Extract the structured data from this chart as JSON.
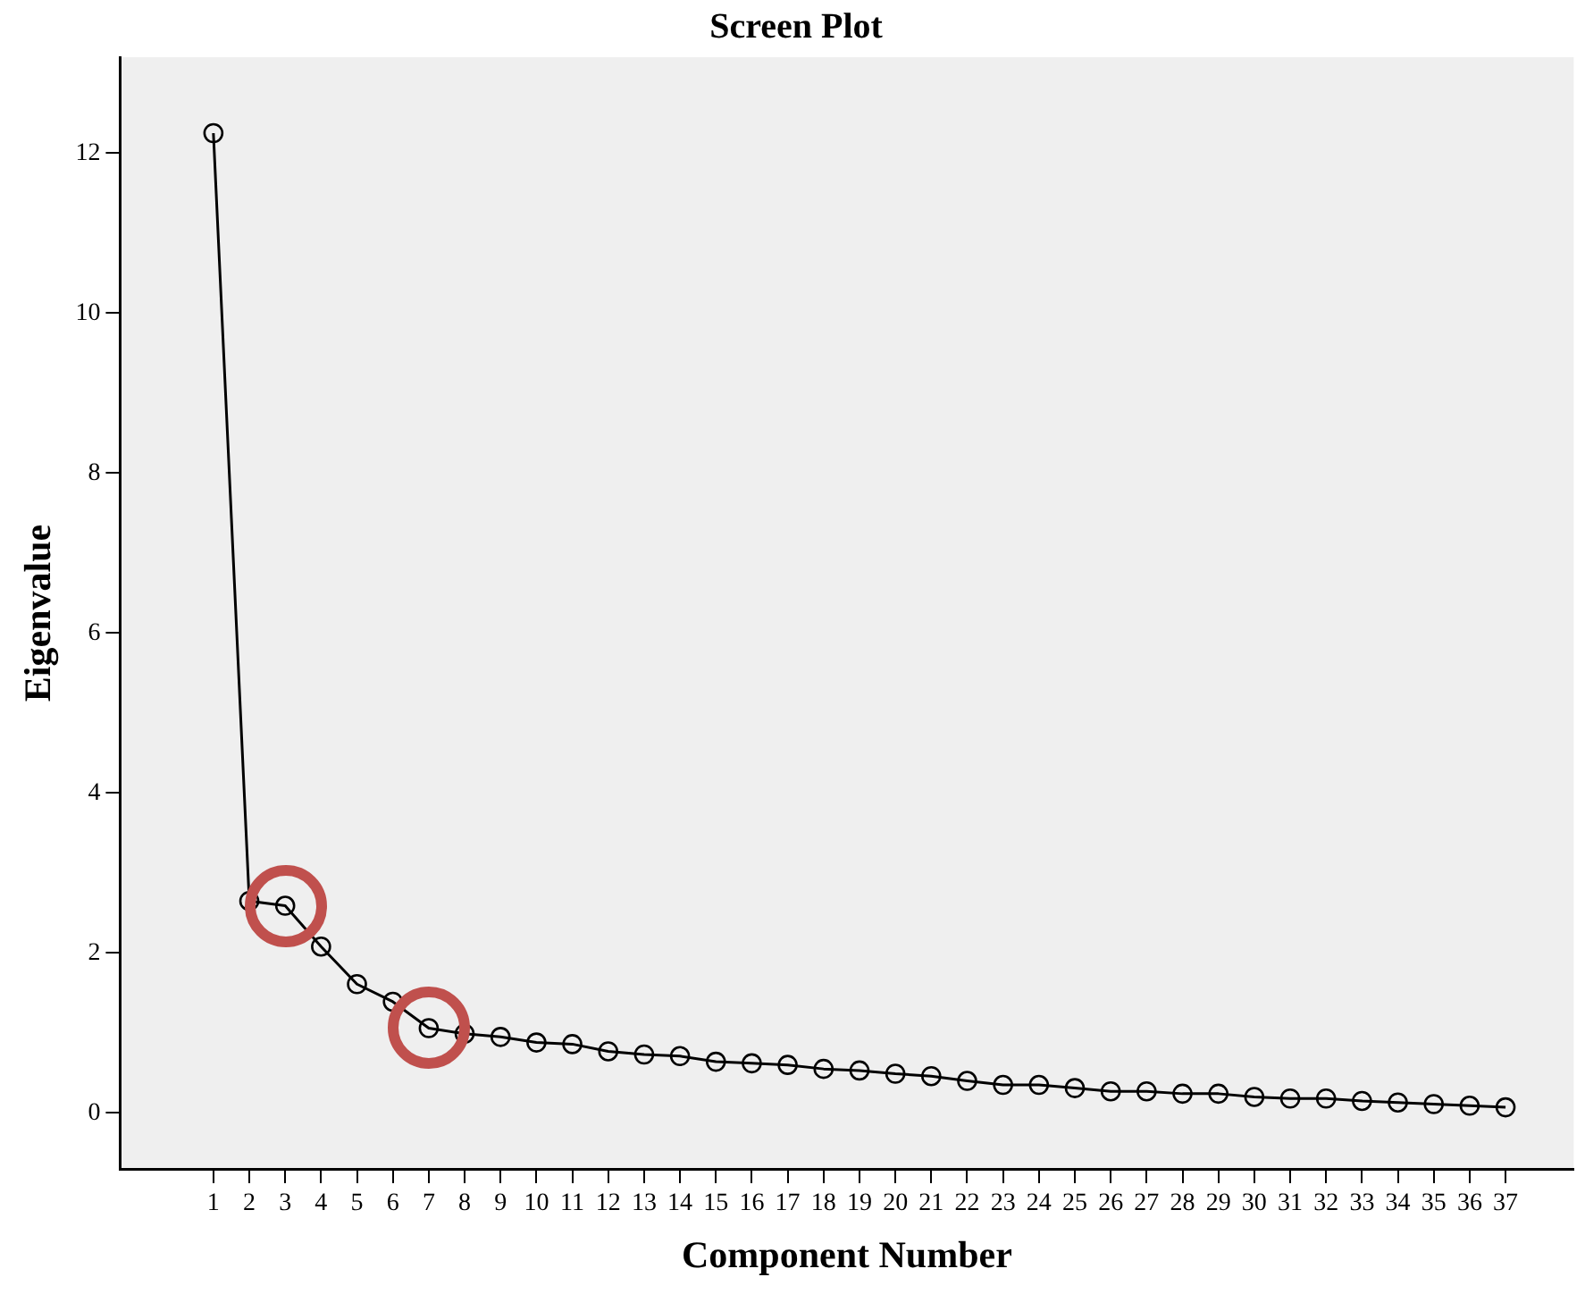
{
  "chart_data": {
    "type": "line",
    "title": "Screen Plot",
    "xlabel": "Component Number",
    "ylabel": "Eigenvalue",
    "x": [
      1,
      2,
      3,
      4,
      5,
      6,
      7,
      8,
      9,
      10,
      11,
      12,
      13,
      14,
      15,
      16,
      17,
      18,
      19,
      20,
      21,
      22,
      23,
      24,
      25,
      26,
      27,
      28,
      29,
      30,
      31,
      32,
      33,
      34,
      35,
      36,
      37
    ],
    "series": [
      {
        "color": "#000000",
        "values": [
          12.25,
          2.65,
          2.59,
          2.08,
          1.61,
          1.39,
          1.06,
          0.99,
          0.95,
          0.88,
          0.86,
          0.77,
          0.73,
          0.71,
          0.64,
          0.62,
          0.6,
          0.55,
          0.53,
          0.49,
          0.46,
          0.4,
          0.35,
          0.35,
          0.31,
          0.27,
          0.27,
          0.24,
          0.24,
          0.2,
          0.18,
          0.18,
          0.15,
          0.13,
          0.11,
          0.09,
          0.07
        ]
      }
    ],
    "xlim": [
      -1.6,
      38.9
    ],
    "xticks": [
      1,
      2,
      3,
      4,
      5,
      6,
      7,
      8,
      9,
      10,
      11,
      12,
      13,
      14,
      15,
      16,
      17,
      18,
      19,
      20,
      21,
      22,
      23,
      24,
      25,
      26,
      27,
      28,
      29,
      30,
      31,
      32,
      33,
      34,
      35,
      36,
      37
    ],
    "ylim": [
      -0.7,
      13.2
    ],
    "yticks": [
      0,
      2,
      4,
      6,
      8,
      10,
      12
    ],
    "grid": false,
    "legend": false,
    "marker": "circle",
    "line_style": "solid"
  }
}
